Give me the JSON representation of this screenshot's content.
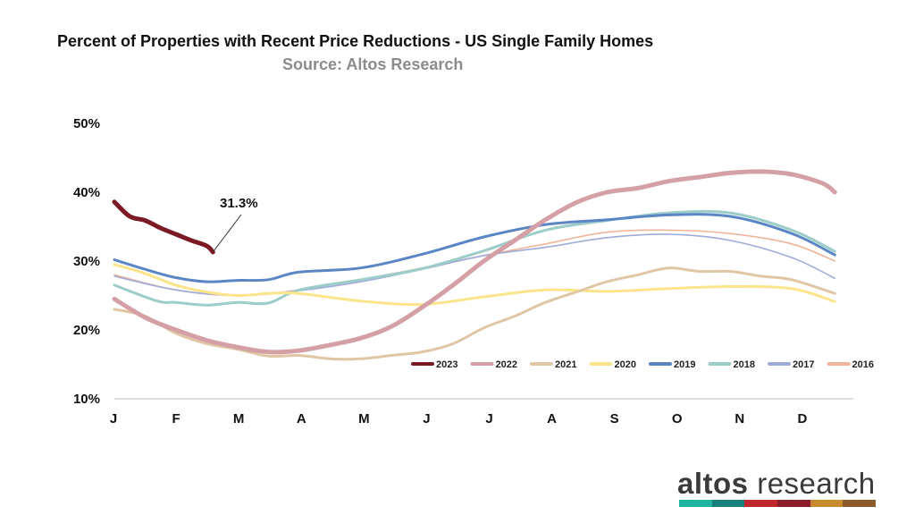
{
  "header": {
    "title": "Percent of Properties with Recent Price Reductions - US Single Family Homes",
    "subtitle": "Source: Altos Research"
  },
  "brand": {
    "word1": "altos",
    "word2": " research",
    "stripe_colors": [
      "#1fb3a3",
      "#17807a",
      "#c0272d",
      "#8a1c2b",
      "#c98a2e",
      "#8c5a2b"
    ]
  },
  "chart_data": {
    "type": "line",
    "title": "Percent of Properties with Recent Price Reductions - US Single Family Homes",
    "subtitle": "Source: Altos Research",
    "xlabel": "",
    "ylabel": "",
    "ylim": [
      10,
      50
    ],
    "yticks": [
      10,
      20,
      30,
      40,
      50
    ],
    "ytick_labels": [
      "10%",
      "20%",
      "30%",
      "40%",
      "50%"
    ],
    "x_tick_labels": [
      "J",
      "F",
      "M",
      "A",
      "M",
      "J",
      "J",
      "A",
      "S",
      "O",
      "N",
      "D"
    ],
    "x_domain": [
      0,
      12
    ],
    "grid": false,
    "legend_position": "bottom-right",
    "annotation": {
      "text": "31.3%",
      "series": "2023",
      "x": 1.6,
      "y": 31.3
    },
    "series": [
      {
        "name": "2016",
        "color": "#f0b49a",
        "width": 1.6,
        "points": [
          [
            0,
            28.0
          ],
          [
            1,
            25.8
          ],
          [
            2,
            25.0
          ],
          [
            3,
            25.8
          ],
          [
            4,
            27.3
          ],
          [
            5,
            29.0
          ],
          [
            6,
            30.8
          ],
          [
            7,
            32.5
          ],
          [
            8,
            34.2
          ],
          [
            9,
            34.5
          ],
          [
            10,
            34.0
          ],
          [
            11,
            32.5
          ],
          [
            11.7,
            30.0
          ]
        ]
      },
      {
        "name": "2017",
        "color": "#9fabd8",
        "width": 1.6,
        "points": [
          [
            0,
            27.8
          ],
          [
            1,
            25.8
          ],
          [
            2,
            25.0
          ],
          [
            3,
            25.7
          ],
          [
            4,
            27.0
          ],
          [
            5,
            28.8
          ],
          [
            6,
            30.8
          ],
          [
            7,
            32.0
          ],
          [
            8,
            33.4
          ],
          [
            9,
            33.9
          ],
          [
            10,
            33.0
          ],
          [
            11,
            30.5
          ],
          [
            11.7,
            27.5
          ]
        ]
      },
      {
        "name": "2018",
        "color": "#9ccdc8",
        "width": 3,
        "points": [
          [
            0,
            26.5
          ],
          [
            0.7,
            24.2
          ],
          [
            1,
            24.0
          ],
          [
            1.5,
            23.6
          ],
          [
            2,
            24.0
          ],
          [
            2.5,
            23.9
          ],
          [
            3,
            25.8
          ],
          [
            4,
            27.3
          ],
          [
            5,
            28.9
          ],
          [
            6,
            31.5
          ],
          [
            7,
            34.5
          ],
          [
            8,
            35.9
          ],
          [
            9,
            37.0
          ],
          [
            10,
            37.0
          ],
          [
            11,
            34.5
          ],
          [
            11.7,
            31.4
          ]
        ]
      },
      {
        "name": "2019",
        "color": "#5b86c6",
        "width": 3,
        "points": [
          [
            0,
            30.2
          ],
          [
            0.5,
            28.8
          ],
          [
            1,
            27.6
          ],
          [
            1.5,
            27.0
          ],
          [
            2,
            27.2
          ],
          [
            2.5,
            27.3
          ],
          [
            3,
            28.4
          ],
          [
            4,
            29.0
          ],
          [
            5,
            31.0
          ],
          [
            6,
            33.5
          ],
          [
            7,
            35.3
          ],
          [
            8,
            36.0
          ],
          [
            9,
            36.7
          ],
          [
            10,
            36.5
          ],
          [
            11,
            34.0
          ],
          [
            11.7,
            30.9
          ]
        ]
      },
      {
        "name": "2020",
        "color": "#fbe48a",
        "width": 3,
        "points": [
          [
            0,
            29.5
          ],
          [
            0.5,
            28.2
          ],
          [
            1,
            26.5
          ],
          [
            1.5,
            25.5
          ],
          [
            2,
            25.0
          ],
          [
            2.5,
            25.3
          ],
          [
            3,
            25.3
          ],
          [
            4,
            24.2
          ],
          [
            5,
            23.7
          ],
          [
            6,
            24.8
          ],
          [
            7,
            25.8
          ],
          [
            8,
            25.6
          ],
          [
            9,
            26.0
          ],
          [
            10,
            26.3
          ],
          [
            11,
            26.0
          ],
          [
            11.7,
            24.1
          ]
        ]
      },
      {
        "name": "2021",
        "color": "#dfc7a5",
        "width": 3,
        "points": [
          [
            0,
            23.0
          ],
          [
            0.5,
            22.0
          ],
          [
            1,
            19.5
          ],
          [
            1.5,
            18.0
          ],
          [
            2,
            17.2
          ],
          [
            2.5,
            16.2
          ],
          [
            3,
            16.3
          ],
          [
            3.5,
            15.8
          ],
          [
            4,
            15.8
          ],
          [
            4.5,
            16.3
          ],
          [
            5,
            16.8
          ],
          [
            5.5,
            18.0
          ],
          [
            6,
            20.3
          ],
          [
            6.5,
            22.0
          ],
          [
            7,
            24.0
          ],
          [
            7.5,
            25.5
          ],
          [
            8,
            27.0
          ],
          [
            8.5,
            28.0
          ],
          [
            9,
            29.0
          ],
          [
            9.5,
            28.5
          ],
          [
            10,
            28.5
          ],
          [
            10.5,
            27.8
          ],
          [
            11,
            27.3
          ],
          [
            11.7,
            25.3
          ]
        ]
      },
      {
        "name": "2022",
        "color": "#d4a0a6",
        "width": 5,
        "points": [
          [
            0,
            24.5
          ],
          [
            0.5,
            21.8
          ],
          [
            1,
            20.0
          ],
          [
            1.5,
            18.5
          ],
          [
            2,
            17.5
          ],
          [
            2.5,
            16.8
          ],
          [
            3,
            17.0
          ],
          [
            3.5,
            17.8
          ],
          [
            4,
            18.8
          ],
          [
            4.5,
            20.5
          ],
          [
            5,
            23.3
          ],
          [
            5.5,
            26.5
          ],
          [
            6,
            30.0
          ],
          [
            6.5,
            33.0
          ],
          [
            7,
            36.0
          ],
          [
            7.5,
            38.5
          ],
          [
            8,
            40.0
          ],
          [
            8.5,
            40.6
          ],
          [
            9,
            41.6
          ],
          [
            9.5,
            42.2
          ],
          [
            10,
            42.8
          ],
          [
            10.5,
            43.0
          ],
          [
            11,
            42.6
          ],
          [
            11.5,
            41.3
          ],
          [
            11.7,
            40.0
          ]
        ]
      },
      {
        "name": "2023",
        "color": "#7b1a25",
        "width": 5,
        "points": [
          [
            0,
            38.6
          ],
          [
            0.25,
            36.5
          ],
          [
            0.5,
            35.9
          ],
          [
            0.75,
            34.8
          ],
          [
            1,
            33.9
          ],
          [
            1.25,
            33.0
          ],
          [
            1.5,
            32.2
          ],
          [
            1.6,
            31.3
          ]
        ]
      }
    ],
    "legend_order": [
      "2023",
      "2022",
      "2021",
      "2020",
      "2019",
      "2018",
      "2017",
      "2016"
    ]
  }
}
